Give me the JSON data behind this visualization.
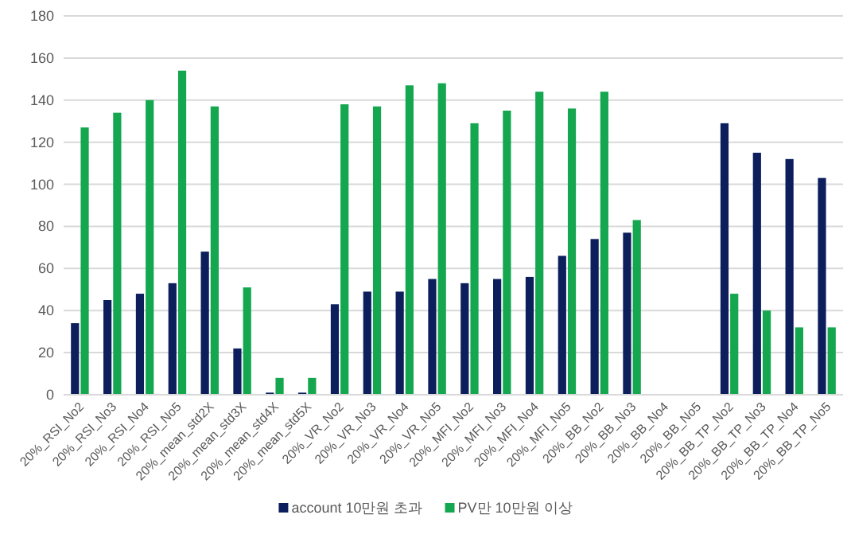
{
  "chart_data": {
    "type": "bar",
    "categories": [
      "20%_RSI_No2",
      "20%_RSI_No3",
      "20%_RSI_No4",
      "20%_RSI_No5",
      "20%_mean_std2X",
      "20%_mean_std3X",
      "20%_mean_std4X",
      "20%_mean_std5X",
      "20%_VR_No2",
      "20%_VR_No3",
      "20%_VR_No4",
      "20%_VR_No5",
      "20%_MFI_No2",
      "20%_MFI_No3",
      "20%_MFI_No4",
      "20%_MFI_No5",
      "20%_BB_No2",
      "20%_BB_No3",
      "20%_BB_No4",
      "20%_BB_No5",
      "20%_BB_TP_No2",
      "20%_BB_TP_No3",
      "20%_BB_TP_No4",
      "20%_BB_TP_No5"
    ],
    "series": [
      {
        "name": "account 10만원 초과",
        "color": "#0c1f5c",
        "values": [
          34,
          45,
          48,
          53,
          68,
          22,
          1,
          1,
          43,
          49,
          49,
          55,
          53,
          55,
          56,
          66,
          74,
          77,
          null,
          null,
          129,
          115,
          112,
          103
        ]
      },
      {
        "name": "PV만 10만원 이상",
        "color": "#14a750",
        "values": [
          127,
          134,
          140,
          154,
          137,
          51,
          8,
          8,
          138,
          137,
          147,
          148,
          129,
          135,
          144,
          136,
          144,
          83,
          null,
          null,
          48,
          40,
          32,
          32
        ]
      }
    ],
    "ylim": [
      0,
      180
    ],
    "yticks": [
      0,
      20,
      40,
      60,
      80,
      100,
      120,
      140,
      160,
      180
    ],
    "grid": "y",
    "legend": "bottom"
  }
}
